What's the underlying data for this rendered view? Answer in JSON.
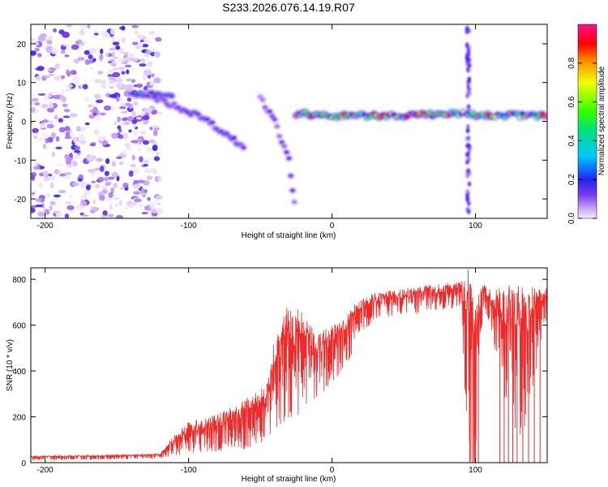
{
  "figure": {
    "title": "S233.2026.076.14.19.R07"
  },
  "colors": {
    "series_line": "#ee2b2b",
    "axis": "#000000",
    "background": "#ffffff"
  },
  "chart_data": [
    {
      "type": "heatmap",
      "name": "spectrogram",
      "xlabel": "Height of straight line (km)",
      "ylabel": "Frequency (Hz)",
      "xlim": [
        -210,
        150
      ],
      "ylim": [
        -25,
        25
      ],
      "xticks": [
        -200,
        -100,
        0,
        100
      ],
      "yticks": [
        -20,
        -10,
        0,
        10,
        20
      ],
      "colorbar": {
        "label": "Normalized spectral amplitude",
        "range": [
          0,
          1
        ],
        "ticks": [
          "0.0",
          "0.2",
          "0.4",
          "0.6",
          "0.8"
        ],
        "tick_values": [
          0.0,
          0.2,
          0.4,
          0.6,
          0.8
        ]
      },
      "features": [
        {
          "name": "diffuse-noise",
          "x_range": [
            -210,
            -120
          ],
          "freq_range": [
            -25,
            25
          ],
          "amplitude": 0.15
        },
        {
          "name": "descending-band",
          "points": [
            [
              -130,
              7
            ],
            [
              -110,
              4
            ],
            [
              -90,
              1
            ],
            [
              -75,
              -3
            ],
            [
              -60,
              -7
            ]
          ],
          "amplitude": 0.25
        },
        {
          "name": "upper-branch",
          "points": [
            [
              -140,
              7
            ],
            [
              -120,
              7
            ],
            [
              -110,
              7
            ]
          ],
          "amplitude": 0.35
        },
        {
          "name": "steep-lower-branch",
          "points": [
            [
              -50,
              6
            ],
            [
              -40,
              0
            ],
            [
              -30,
              -10
            ],
            [
              -25,
              -25
            ]
          ],
          "amplitude": 0.2
        },
        {
          "name": "main-tone",
          "points": [
            [
              -25,
              2
            ],
            [
              0,
              1.5
            ],
            [
              50,
              1.5
            ],
            [
              90,
              2
            ],
            [
              100,
              1.5
            ],
            [
              150,
              1.5
            ]
          ],
          "amplitude": 0.9
        },
        {
          "name": "vertical-burst",
          "x": 95,
          "freq_range": [
            -25,
            25
          ],
          "amplitude": 0.2
        }
      ]
    },
    {
      "type": "line",
      "name": "snr",
      "xlabel": "Height of straight line (km)",
      "ylabel": "SNR (10 * v/v)",
      "xlim": [
        -210,
        150
      ],
      "ylim": [
        0,
        850
      ],
      "xticks": [
        -200,
        -100,
        0,
        100
      ],
      "yticks": [
        0,
        200,
        400,
        600,
        800
      ],
      "envelope": {
        "x": [
          -210,
          -150,
          -120,
          -110,
          -100,
          -80,
          -60,
          -45,
          -40,
          -30,
          -20,
          -10,
          0,
          10,
          20,
          30,
          50,
          70,
          90,
          95,
          100,
          105,
          110,
          130,
          150
        ],
        "low": [
          10,
          15,
          20,
          30,
          40,
          50,
          60,
          100,
          130,
          180,
          220,
          280,
          350,
          420,
          560,
          620,
          640,
          660,
          680,
          0,
          0,
          650,
          600,
          0,
          620
        ],
        "high": [
          30,
          35,
          40,
          120,
          180,
          210,
          280,
          350,
          550,
          700,
          650,
          560,
          600,
          650,
          720,
          740,
          760,
          780,
          790,
          850,
          700,
          780,
          760,
          780,
          760
        ]
      },
      "dropouts": [
        96,
        98,
        100,
        102,
        117,
        120,
        123,
        126,
        129,
        133,
        137,
        141,
        145
      ]
    }
  ]
}
